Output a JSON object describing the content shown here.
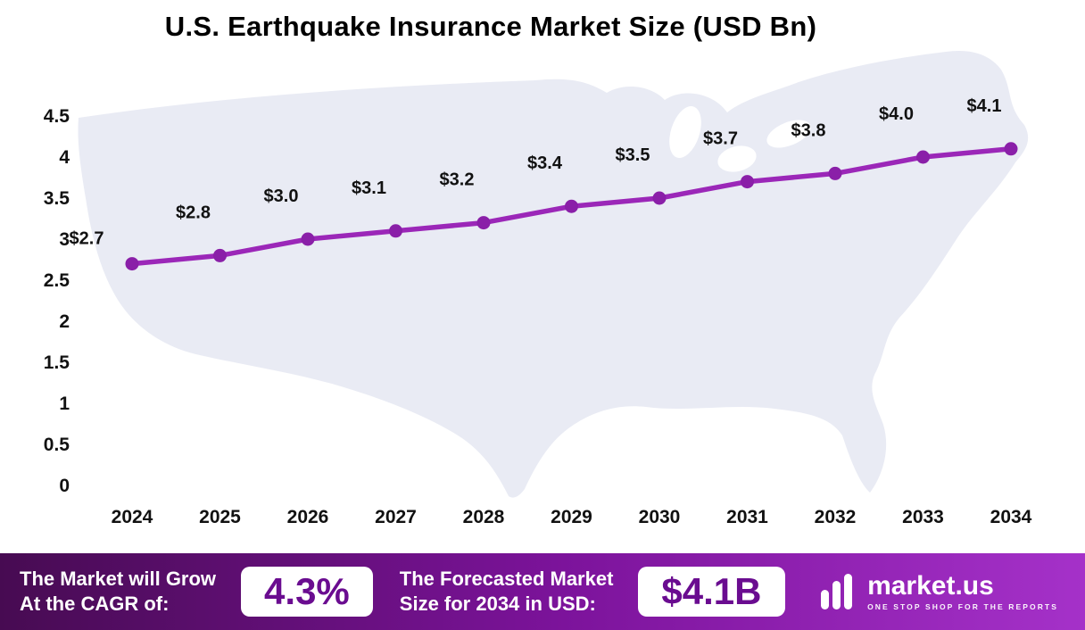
{
  "chart_data": {
    "type": "line",
    "title": "U.S. Earthquake Insurance Market Size (USD Bn)",
    "categories": [
      "2024",
      "2025",
      "2026",
      "2027",
      "2028",
      "2029",
      "2030",
      "2031",
      "2032",
      "2033",
      "2034"
    ],
    "series": [
      {
        "name": "U.S. Earthquake Insurance Market Size (USD Bn)",
        "values": [
          2.7,
          2.8,
          3.0,
          3.1,
          3.2,
          3.4,
          3.5,
          3.7,
          3.8,
          4.0,
          4.1
        ]
      }
    ],
    "point_labels": [
      "$2.7",
      "$2.8",
      "$3.0",
      "$3.1",
      "$3.2",
      "$3.4",
      "$3.5",
      "$3.7",
      "$3.8",
      "$4.0",
      "$4.1"
    ],
    "ylim": [
      0,
      4.5
    ],
    "yticks": [
      "0",
      "0.5",
      "1",
      "1.5",
      "2",
      "2.5",
      "3",
      "3.5",
      "4",
      "4.5"
    ],
    "grid": false,
    "legend": "none",
    "line_color": "#9b27b8",
    "marker_color": "#8a1fa8",
    "map_color": "#e9ebf4"
  },
  "footer": {
    "cagr_label_line1": "The Market will Grow",
    "cagr_label_line2": "At the CAGR of:",
    "cagr_value": "4.3%",
    "forecast_label_line1": "The Forecasted Market",
    "forecast_label_line2": "Size for 2034 in USD:",
    "forecast_value": "$4.1B",
    "brand_name": "market.us",
    "brand_tagline": "ONE STOP SHOP FOR THE REPORTS"
  }
}
